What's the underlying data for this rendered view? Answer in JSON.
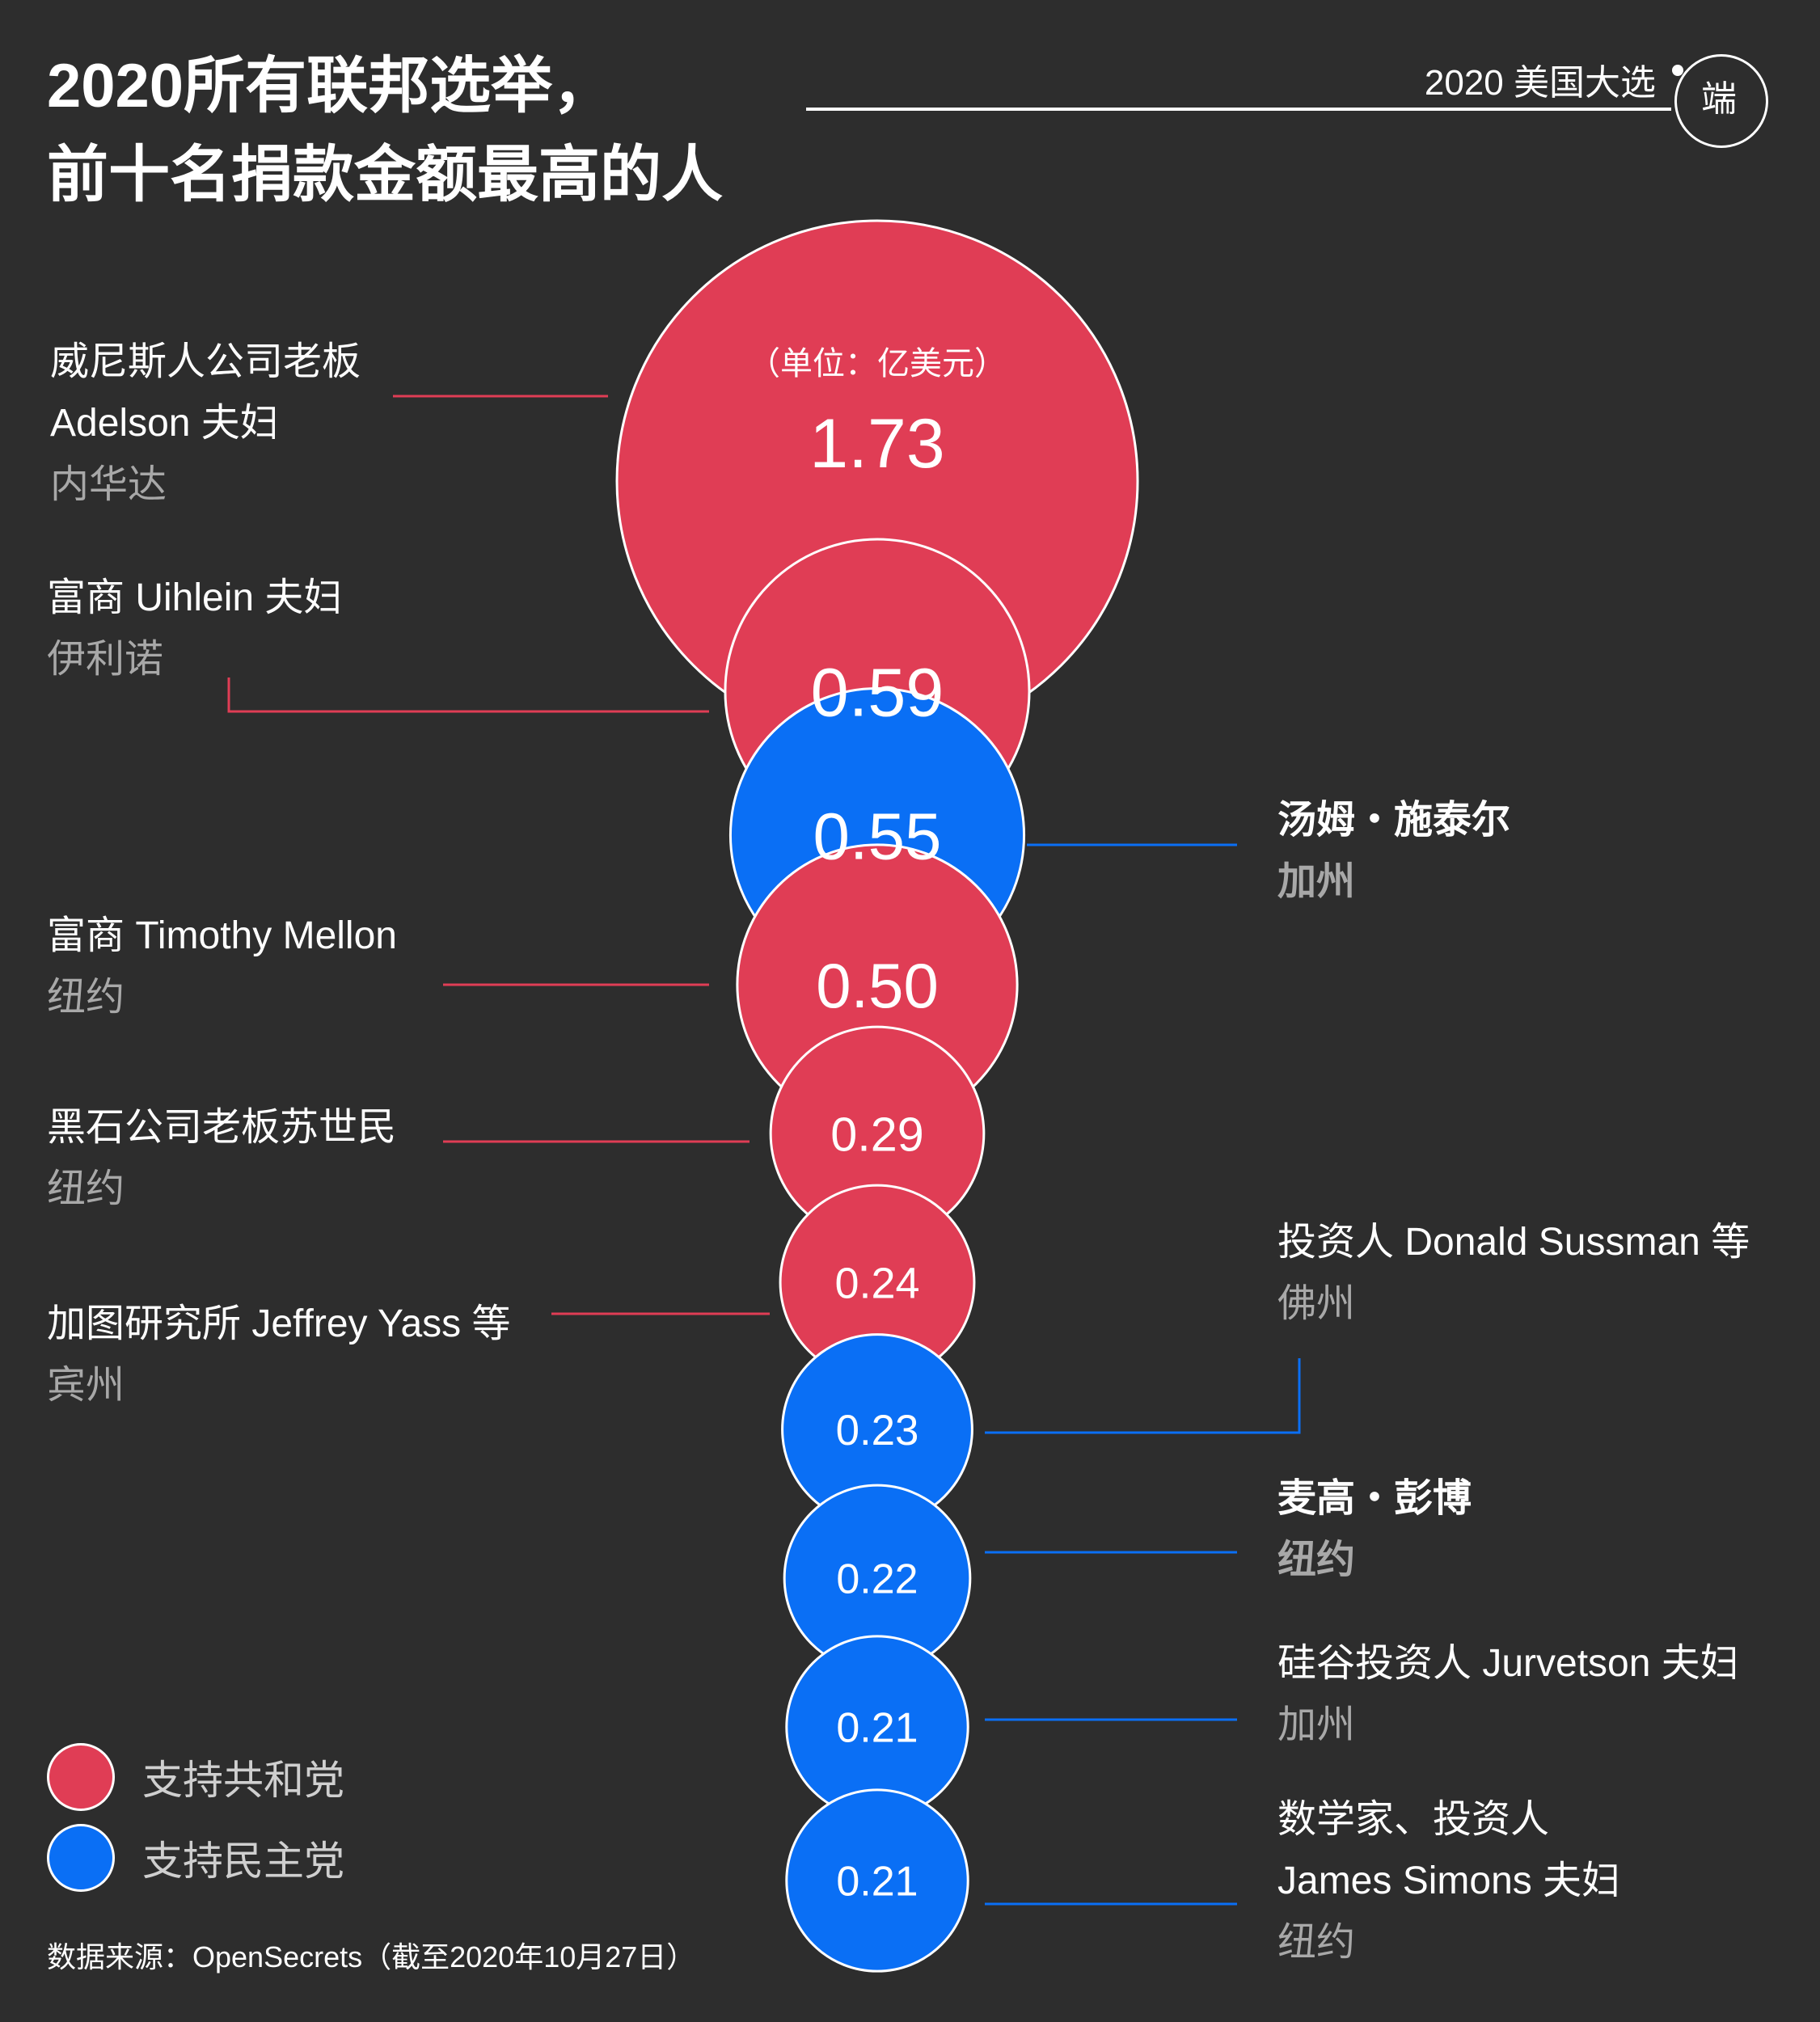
{
  "title_lines": [
    "2020所有联邦选举，",
    "前十名捐款金额最高的人"
  ],
  "series_tag": "2020 美国大选",
  "logo_text": "端",
  "colors": {
    "republican": "#e03d55",
    "democrat": "#0a6ff5",
    "background": "#2d2d2d"
  },
  "legend": [
    {
      "label": "支持共和党",
      "color": "#e03d55"
    },
    {
      "label": "支持民主党",
      "color": "#0a6ff5"
    }
  ],
  "source": "数据来源：OpenSecrets（截至2020年10月27日）",
  "unit_note": "（单位：亿美元）",
  "chart_data": {
    "type": "bubble",
    "unit": "亿美元",
    "donors": [
      {
        "name_lines": [
          "威尼斯人公司老板",
          "Adelson 夫妇"
        ],
        "state": "内华达",
        "value": 1.73,
        "label": "1.73",
        "party": "republican"
      },
      {
        "name_lines": [
          "富商 Uihlein 夫妇"
        ],
        "state": "伊利诺",
        "value": 0.59,
        "label": "0.59",
        "party": "republican"
      },
      {
        "name_lines": [
          "汤姆・施泰尔"
        ],
        "state": "加州",
        "value": 0.55,
        "label": "0.55",
        "party": "democrat"
      },
      {
        "name_lines": [
          "富商 Timothy Mellon"
        ],
        "state": "纽约",
        "value": 0.5,
        "label": "0.50",
        "party": "republican"
      },
      {
        "name_lines": [
          "黑石公司老板苏世民"
        ],
        "state": "纽约",
        "value": 0.29,
        "label": "0.29",
        "party": "republican"
      },
      {
        "name_lines": [
          "加图研究所 Jeffrey Yass 等"
        ],
        "state": "宾州",
        "value": 0.24,
        "label": "0.24",
        "party": "republican"
      },
      {
        "name_lines": [
          "投资人 Donald Sussman 等"
        ],
        "state": "佛州",
        "value": 0.23,
        "label": "0.23",
        "party": "democrat"
      },
      {
        "name_lines": [
          "麦高・彭博"
        ],
        "state": "纽约",
        "value": 0.22,
        "label": "0.22",
        "party": "democrat"
      },
      {
        "name_lines": [
          "硅谷投资人 Jurvetson 夫妇"
        ],
        "state": "加州",
        "value": 0.21,
        "label": "0.21",
        "party": "democrat"
      },
      {
        "name_lines": [
          "数学家、投资人",
          "James Simons 夫妇"
        ],
        "state": "纽约",
        "value": 0.21,
        "label": "0.21",
        "party": "democrat"
      }
    ]
  }
}
